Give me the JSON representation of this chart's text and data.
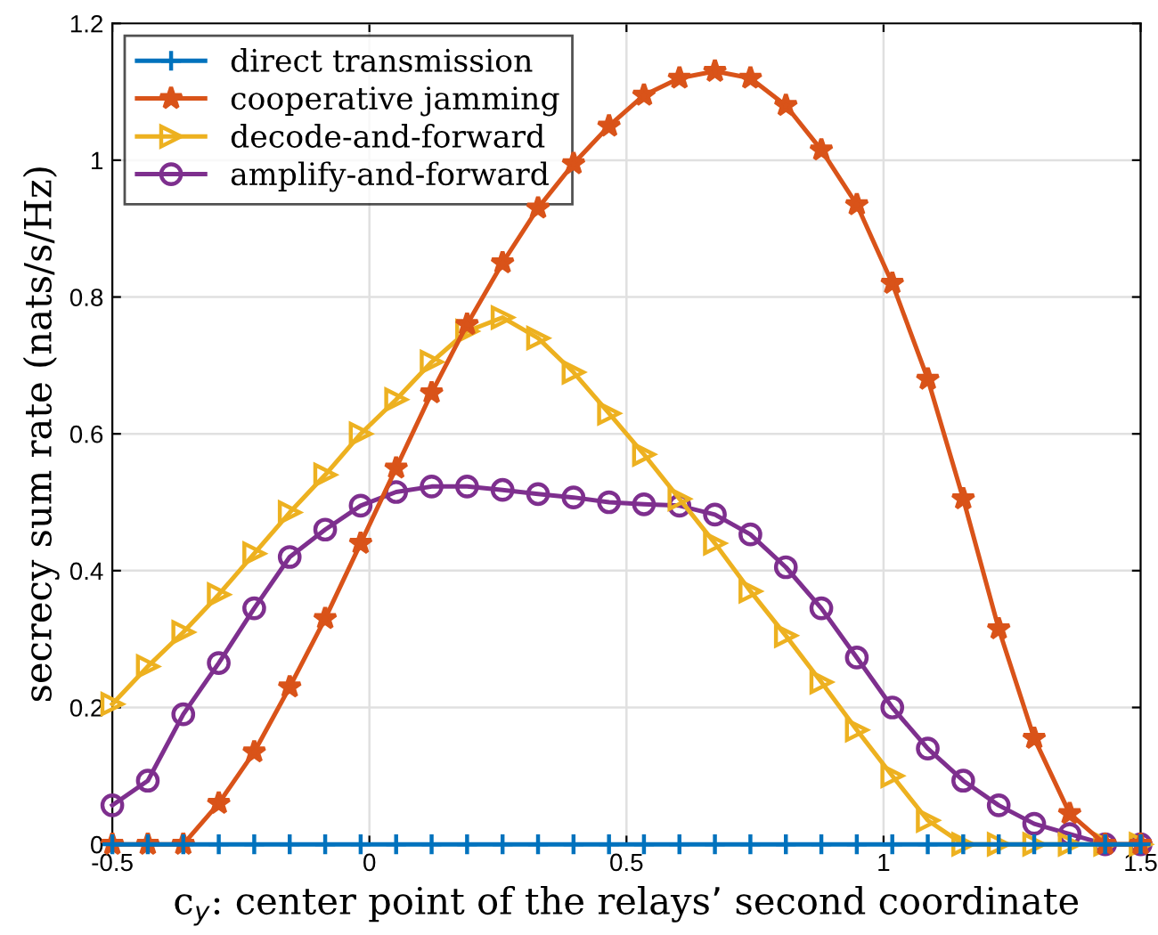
{
  "chart_data": {
    "type": "line",
    "xlabel": "c$_{y}$: center point of the relays’ second coordinate",
    "ylabel": "secrecy sum rate (nats/s/Hz)",
    "x": [
      -0.5,
      -0.431,
      -0.362,
      -0.293,
      -0.224,
      -0.155,
      -0.086,
      -0.017,
      0.052,
      0.121,
      0.19,
      0.259,
      0.328,
      0.397,
      0.466,
      0.534,
      0.603,
      0.672,
      0.741,
      0.81,
      0.879,
      0.948,
      1.017,
      1.086,
      1.155,
      1.224,
      1.293,
      1.362,
      1.431,
      1.5
    ],
    "series": [
      {
        "name": "direct transmission",
        "color": "#0072bd",
        "marker": "cross",
        "values": [
          0,
          0,
          0,
          0,
          0,
          0,
          0,
          0,
          0,
          0,
          0,
          0,
          0,
          0,
          0,
          0,
          0,
          0,
          0,
          0,
          0,
          0,
          0,
          0,
          0,
          0,
          0,
          0,
          0,
          0
        ]
      },
      {
        "name": "cooperative jamming",
        "color": "#d95319",
        "marker": "star",
        "values": [
          0,
          0,
          0,
          0.06,
          0.135,
          0.23,
          0.33,
          0.44,
          0.55,
          0.66,
          0.76,
          0.85,
          0.93,
          0.995,
          1.05,
          1.095,
          1.12,
          1.13,
          1.12,
          1.08,
          1.015,
          0.935,
          0.82,
          0.68,
          0.505,
          0.315,
          0.155,
          0.045,
          0,
          0
        ]
      },
      {
        "name": "decode-and-forward",
        "color": "#edb120",
        "marker": "triangle",
        "values": [
          0.205,
          0.26,
          0.31,
          0.365,
          0.425,
          0.485,
          0.54,
          0.6,
          0.65,
          0.705,
          0.75,
          0.77,
          0.74,
          0.69,
          0.63,
          0.57,
          0.505,
          0.44,
          0.37,
          0.305,
          0.237,
          0.167,
          0.1,
          0.035,
          0,
          0,
          0,
          0,
          0,
          0
        ]
      },
      {
        "name": "amplify-and-forward",
        "color": "#7e2f8e",
        "marker": "circle",
        "values": [
          0.057,
          0.093,
          0.19,
          0.265,
          0.345,
          0.42,
          0.46,
          0.495,
          0.515,
          0.523,
          0.523,
          0.518,
          0.512,
          0.507,
          0.5,
          0.497,
          0.495,
          0.482,
          0.453,
          0.405,
          0.345,
          0.273,
          0.2,
          0.14,
          0.093,
          0.057,
          0.03,
          0.015,
          0,
          0
        ]
      }
    ],
    "xlim": [
      -0.5,
      1.5
    ],
    "xticks": [
      {
        "value": -0.5,
        "label": "-0.5"
      },
      0,
      0.5,
      1,
      1.5
    ],
    "ylim": [
      0,
      1.2
    ],
    "yticks": [
      0,
      0.2,
      0.4,
      0.6,
      0.8,
      1,
      1.2
    ],
    "grid": true,
    "legend": "top left",
    "line_style": "solid"
  }
}
